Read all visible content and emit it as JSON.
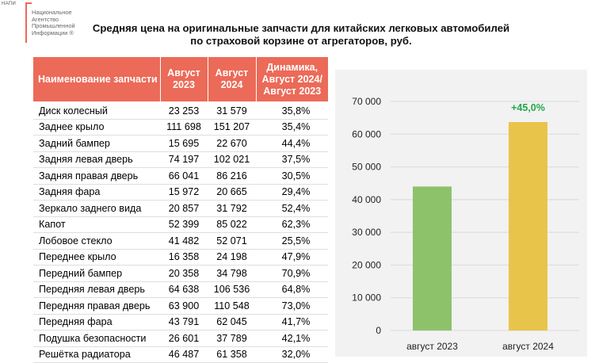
{
  "logo": {
    "abbr": "НАПИ",
    "lines": [
      "Национальное",
      "Агентство",
      "Промышленной",
      "Информации ®"
    ]
  },
  "title": {
    "line1": "Средняя цена на оригинальные запчасти для китайских легковых автомобилей",
    "line2": "по страховой корзине от агрегаторов, руб."
  },
  "table": {
    "headers": {
      "name": "Наименование запчасти",
      "aug2023": "Август 2023",
      "aug2024": "Август 2024",
      "dynamics": "Динамика, Август 2024/ Август 2023"
    },
    "rows": [
      {
        "name": "Диск колесный",
        "aug2023": "23 253",
        "aug2024": "31 579",
        "dynamics": "35,8%"
      },
      {
        "name": "Заднее крыло",
        "aug2023": "111 698",
        "aug2024": "151 207",
        "dynamics": "35,4%"
      },
      {
        "name": "Задний бампер",
        "aug2023": "15 695",
        "aug2024": "22 670",
        "dynamics": "44,4%"
      },
      {
        "name": "Задняя левая дверь",
        "aug2023": "74 197",
        "aug2024": "102 021",
        "dynamics": "37,5%"
      },
      {
        "name": "Задняя правая дверь",
        "aug2023": "66 041",
        "aug2024": "86 216",
        "dynamics": "30,5%"
      },
      {
        "name": "Задняя фара",
        "aug2023": "15 972",
        "aug2024": "20 665",
        "dynamics": "29,4%"
      },
      {
        "name": "Зеркало заднего вида",
        "aug2023": "20 857",
        "aug2024": "31 792",
        "dynamics": "52,4%"
      },
      {
        "name": "Капот",
        "aug2023": "52 399",
        "aug2024": "85 022",
        "dynamics": "62,3%"
      },
      {
        "name": "Лобовое стекло",
        "aug2023": "41 482",
        "aug2024": "52 071",
        "dynamics": "25,5%"
      },
      {
        "name": "Переднее крыло",
        "aug2023": "16 358",
        "aug2024": "24 198",
        "dynamics": "47,9%"
      },
      {
        "name": "Передний бампер",
        "aug2023": "20 358",
        "aug2024": "34 798",
        "dynamics": "70,9%"
      },
      {
        "name": "Передняя левая дверь",
        "aug2023": "64 638",
        "aug2024": "106 536",
        "dynamics": "64,8%"
      },
      {
        "name": "Передняя правая дверь",
        "aug2023": "63 900",
        "aug2024": "110 548",
        "dynamics": "73,0%"
      },
      {
        "name": "Передняя фара",
        "aug2023": "43 791",
        "aug2024": "62 045",
        "dynamics": "41,7%"
      },
      {
        "name": "Подушка безопасности",
        "aug2023": "26 601",
        "aug2024": "37 789",
        "dynamics": "42,1%"
      },
      {
        "name": "Решётка радиатора",
        "aug2023": "46 487",
        "aug2024": "61 358",
        "dynamics": "32,0%"
      }
    ]
  },
  "colors": {
    "header_bg": "#ec6a58",
    "bar_2023": "#8dc26b",
    "bar_2024": "#e9c44a",
    "growth_label": "#21a84a",
    "panel_bg": "#f2f2f2",
    "grid": "#d9d9d9"
  },
  "chart_data": {
    "type": "bar",
    "categories": [
      "август 2023",
      "август 2024"
    ],
    "values": [
      44000,
      63700
    ],
    "ylim": [
      0,
      70000
    ],
    "yticks": [
      0,
      10000,
      20000,
      30000,
      40000,
      50000,
      60000,
      70000
    ],
    "ytick_labels": [
      "0",
      "10 000",
      "20 000",
      "30 000",
      "40 000",
      "50 000",
      "60 000",
      "70 000"
    ],
    "annotation": "+45,0%",
    "title": "",
    "xlabel": "",
    "ylabel": "",
    "grid": true
  }
}
